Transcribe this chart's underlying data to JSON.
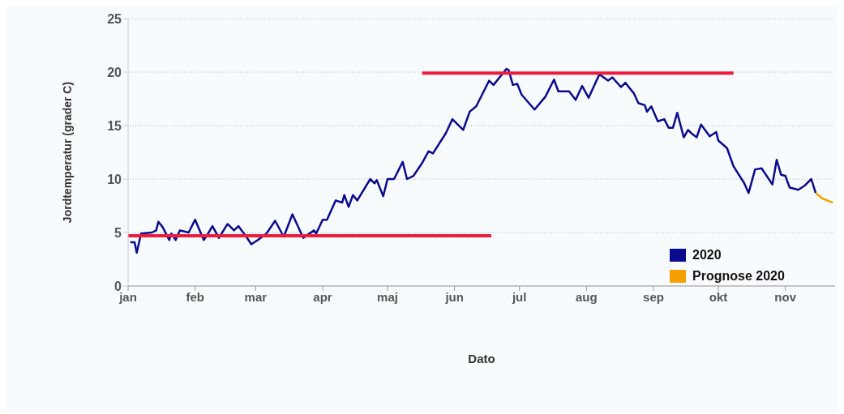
{
  "chart_data": {
    "type": "line",
    "xlabel": "Dato",
    "ylabel": "Jordtemperatur (grader C)",
    "xlim": [
      "--01-01",
      "--11-24"
    ],
    "xticks": [
      {
        "value": "--01-01",
        "label": "jan"
      },
      {
        "value": "--02-01",
        "label": "feb"
      },
      {
        "value": "--03-01",
        "label": "mar"
      },
      {
        "value": "--04-01",
        "label": "apr"
      },
      {
        "value": "--05-01",
        "label": "maj"
      },
      {
        "value": "--06-01",
        "label": "jun"
      },
      {
        "value": "--07-01",
        "label": "jul"
      },
      {
        "value": "--08-01",
        "label": "aug"
      },
      {
        "value": "--09-01",
        "label": "sep"
      },
      {
        "value": "--10-01",
        "label": "okt"
      },
      {
        "value": "--11-01",
        "label": "nov"
      }
    ],
    "ylim": [
      0,
      25
    ],
    "yticks": [
      0,
      5,
      10,
      15,
      20,
      25
    ],
    "grid": "y",
    "legend": "bottom right",
    "marker": "none",
    "line_style": "solid",
    "series": [
      {
        "name": "2020",
        "color": "#0a0a8c",
        "x": [
          "--01-02",
          "--01-04",
          "--01-05",
          "--01-07",
          "--01-12",
          "--01-14",
          "--01-15",
          "--01-17",
          "--01-20",
          "--01-21",
          "--01-23",
          "--01-25",
          "--01-29",
          "--02-01",
          "--02-05",
          "--02-07",
          "--02-09",
          "--02-12",
          "--02-16",
          "--02-19",
          "--02-21",
          "--02-24",
          "--02-27",
          "--03-02",
          "--03-06",
          "--03-10",
          "--03-14",
          "--03-18",
          "--03-23",
          "--03-28",
          "--03-29",
          "--04-01",
          "--04-03",
          "--04-07",
          "--04-10",
          "--04-11",
          "--04-13",
          "--04-15",
          "--04-17",
          "--04-23",
          "--04-25",
          "--04-26",
          "--04-29",
          "--05-01",
          "--05-04",
          "--05-08",
          "--05-10",
          "--05-13",
          "--05-17",
          "--05-20",
          "--05-22",
          "--05-28",
          "--05-31",
          "--06-05",
          "--06-08",
          "--06-11",
          "--06-17",
          "--06-19",
          "--06-25",
          "--06-26",
          "--06-28",
          "--06-30",
          "--07-02",
          "--07-08",
          "--07-13",
          "--07-17",
          "--07-19",
          "--07-24",
          "--07-27",
          "--07-30",
          "--08-02",
          "--08-07",
          "--08-11",
          "--08-13",
          "--08-17",
          "--08-19",
          "--08-23",
          "--08-25",
          "--08-28",
          "--08-29",
          "--08-31",
          "--09-03",
          "--09-06",
          "--09-08",
          "--09-10",
          "--09-12",
          "--09-15",
          "--09-17",
          "--09-19",
          "--09-21",
          "--09-23",
          "--09-27",
          "--09-30",
          "--10-01",
          "--10-05",
          "--10-08",
          "--10-13",
          "--10-15",
          "--10-18",
          "--10-21",
          "--10-26",
          "--10-28",
          "--10-30",
          "--11-01",
          "--11-03",
          "--11-07",
          "--11-10",
          "--11-13",
          "--11-15"
        ],
        "values": [
          4.1,
          4.1,
          3.1,
          4.9,
          5.0,
          5.2,
          6.0,
          5.5,
          4.3,
          4.9,
          4.3,
          5.2,
          5.0,
          6.2,
          4.3,
          4.9,
          5.6,
          4.5,
          5.8,
          5.2,
          5.6,
          4.8,
          3.9,
          4.3,
          4.9,
          6.1,
          4.6,
          6.7,
          4.5,
          5.2,
          4.9,
          6.2,
          6.2,
          8.0,
          7.8,
          8.5,
          7.4,
          8.5,
          8.0,
          10.0,
          9.6,
          9.9,
          8.4,
          10.0,
          10.0,
          11.6,
          10.0,
          10.3,
          11.5,
          12.6,
          12.4,
          14.3,
          15.6,
          14.6,
          16.3,
          16.8,
          19.2,
          18.8,
          20.3,
          20.2,
          18.8,
          18.9,
          17.9,
          16.5,
          17.7,
          19.3,
          18.2,
          18.2,
          17.4,
          18.7,
          17.6,
          19.8,
          19.2,
          19.5,
          18.6,
          19.0,
          18.0,
          17.1,
          16.9,
          16.3,
          16.8,
          15.4,
          15.6,
          14.8,
          14.8,
          16.2,
          13.9,
          14.6,
          14.2,
          13.9,
          15.1,
          14.0,
          14.4,
          13.6,
          12.9,
          11.2,
          9.6,
          8.7,
          10.9,
          11.0,
          9.5,
          11.8,
          10.4,
          10.3,
          9.2,
          9.0,
          9.4,
          10.0,
          8.7
        ]
      },
      {
        "name": "Prognose 2020",
        "color": "#f5a000",
        "x": [
          "--11-15",
          "--11-18",
          "--11-23"
        ],
        "values": [
          8.7,
          8.2,
          7.8
        ]
      },
      {
        "color": "#ee1c3c",
        "x": [
          "--01-01",
          "--06-18"
        ],
        "values": [
          4.7,
          4.7
        ]
      },
      {
        "color": "#ee1c3c",
        "x": [
          "--05-17",
          "--10-08"
        ],
        "values": [
          19.9,
          19.9
        ]
      }
    ]
  }
}
